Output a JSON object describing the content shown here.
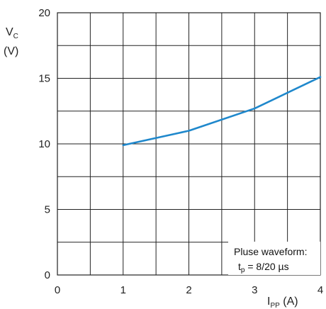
{
  "chart_data": {
    "type": "line",
    "x": [
      1,
      2,
      3,
      4
    ],
    "series": [
      {
        "values": [
          9.9,
          11.0,
          12.7,
          15.1
        ],
        "color": "#1f88cc"
      }
    ],
    "xlim": [
      0,
      4
    ],
    "ylim": [
      0,
      20
    ],
    "x_ticks": [
      "0",
      "1",
      "2",
      "3",
      "4"
    ],
    "y_ticks": [
      "0",
      "5",
      "10",
      "15",
      "20"
    ],
    "grid": true,
    "ylabel": {
      "main": "V",
      "sub": "C",
      "unit": "(V)"
    },
    "xlabel": {
      "main": "I",
      "sub": "PP",
      "unit": " (A)"
    },
    "annotation": {
      "line1": "Pluse waveform:",
      "line2_main": "t",
      "line2_sub": "p",
      "line2_rest": " = 8/20 µs"
    }
  },
  "colors": {
    "grid": "#222222",
    "series": "#1f88cc",
    "background": "#ffffff"
  }
}
